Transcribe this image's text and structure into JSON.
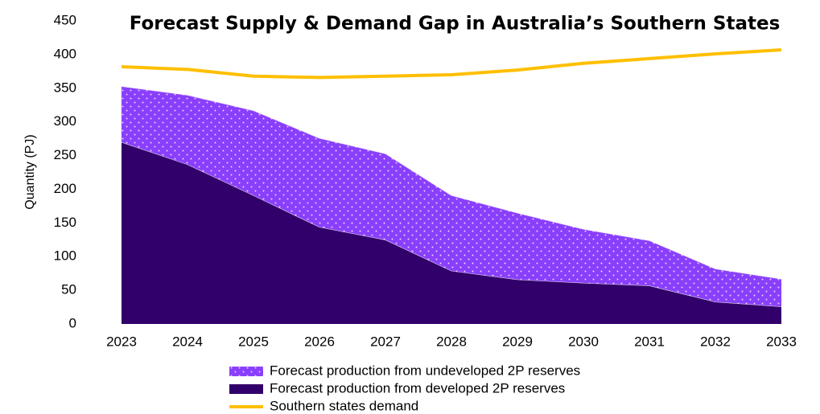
{
  "chart_data": {
    "type": "area",
    "stacked": true,
    "title": "Forecast Supply & Demand Gap in Australia’s Southern States",
    "y_label": "Quantity (PJ)",
    "categories": [
      "2023",
      "2024",
      "2025",
      "2026",
      "2027",
      "2028",
      "2029",
      "2030",
      "2031",
      "2032",
      "2033"
    ],
    "series": [
      {
        "name": "Forecast production from undeveloped 2P reserves",
        "type": "area",
        "pattern": "dots",
        "color": "#8a3ffc",
        "values": [
          83,
          103,
          126,
          132,
          128,
          112,
          99,
          80,
          67,
          49,
          41
        ]
      },
      {
        "name": "Forecast production from developed 2P reserves",
        "type": "area",
        "color": "#32006a",
        "values": [
          270,
          237,
          191,
          144,
          125,
          79,
          66,
          61,
          57,
          33,
          26
        ]
      },
      {
        "name": "Southern states demand",
        "type": "line",
        "color": "#ffbf00",
        "values": [
          382,
          378,
          368,
          366,
          368,
          370,
          377,
          387,
          394,
          401,
          407
        ]
      }
    ],
    "ylim": [
      0,
      450
    ],
    "yticks": [
      0,
      50,
      100,
      150,
      200,
      250,
      300,
      350,
      400,
      450
    ],
    "grid": false,
    "legend": "bottom"
  }
}
